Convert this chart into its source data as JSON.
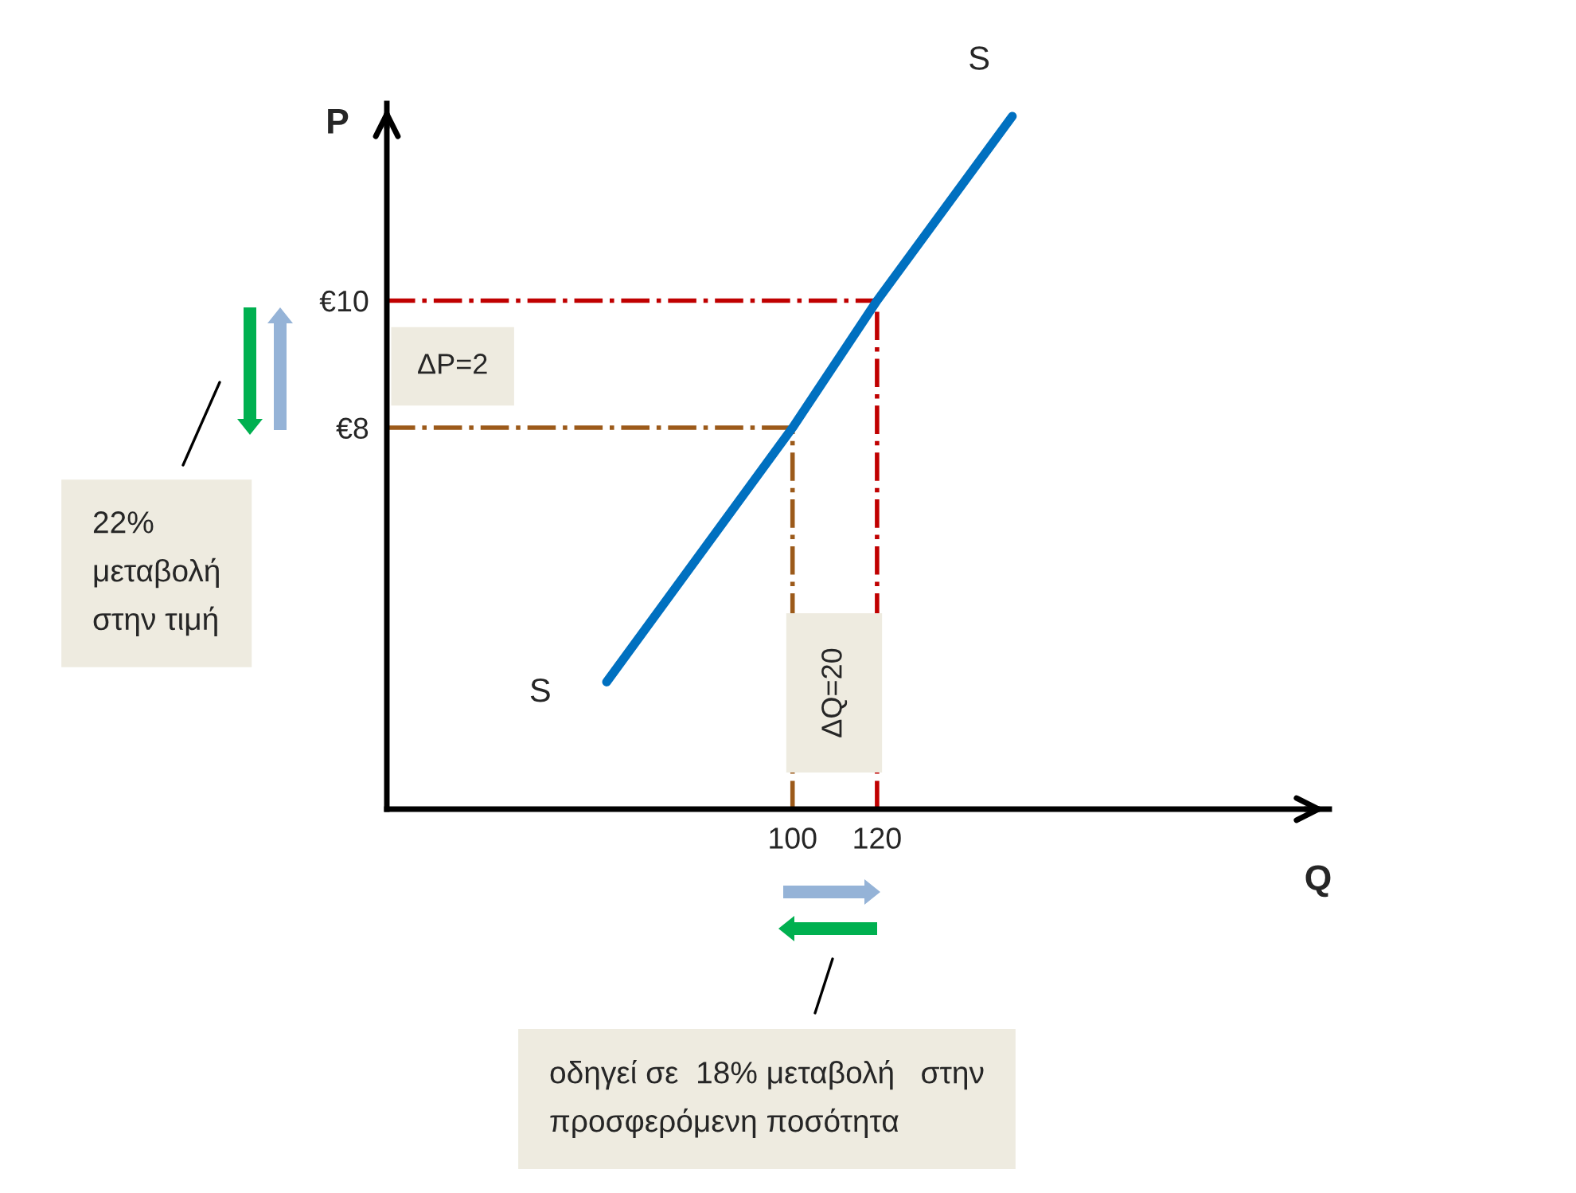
{
  "chart_data": {
    "type": "line",
    "xlabel": "Q",
    "ylabel": "P",
    "x": [
      56,
      100,
      120,
      152
    ],
    "series": [
      {
        "color": "#0070c0",
        "values": [
          4,
          8,
          10,
          12.9
        ]
      }
    ],
    "xlim": [
      4,
      227
    ],
    "ylim": [
      2,
      13.1
    ],
    "xticks": [
      100,
      120
    ],
    "yticks": [
      {
        "value": 8,
        "label": "€8"
      },
      {
        "value": 10,
        "label": "€10"
      }
    ],
    "marker": "none",
    "line_style": "solid",
    "ref_lines": [
      {
        "axis": "y",
        "value": 10,
        "color": "#c00000",
        "line_style": "dashdot"
      },
      {
        "axis": "y",
        "value": 8,
        "color": "#9c5a1a",
        "line_style": "dashdot"
      },
      {
        "axis": "x",
        "value": 100,
        "color": "#9c5a1a",
        "line_style": "dashdot"
      },
      {
        "axis": "x",
        "value": 120,
        "color": "#c00000",
        "line_style": "dashdot"
      }
    ],
    "annotations": [
      {
        "text": "S",
        "x": 56,
        "y": 4
      },
      {
        "text": "S",
        "x": 152,
        "y": 12.9
      },
      "ΔP=2",
      "ΔQ=20",
      "22%\nμεταβολή\nστην τιμή",
      "οδηγεί σε  18% μεταβολή   στην\nπροσφερόμενη ποσότητα"
    ]
  }
}
